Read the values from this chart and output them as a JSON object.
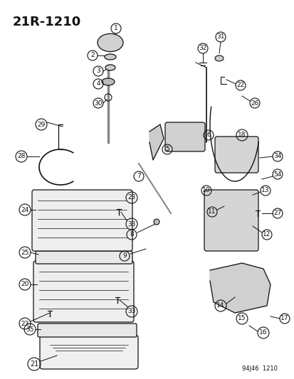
{
  "title": "21R-1210",
  "footer_code": "94J46  1210",
  "bg_color": "#ffffff",
  "title_fontsize": 13,
  "fig_width": 4.14,
  "fig_height": 5.33,
  "dpi": 100
}
